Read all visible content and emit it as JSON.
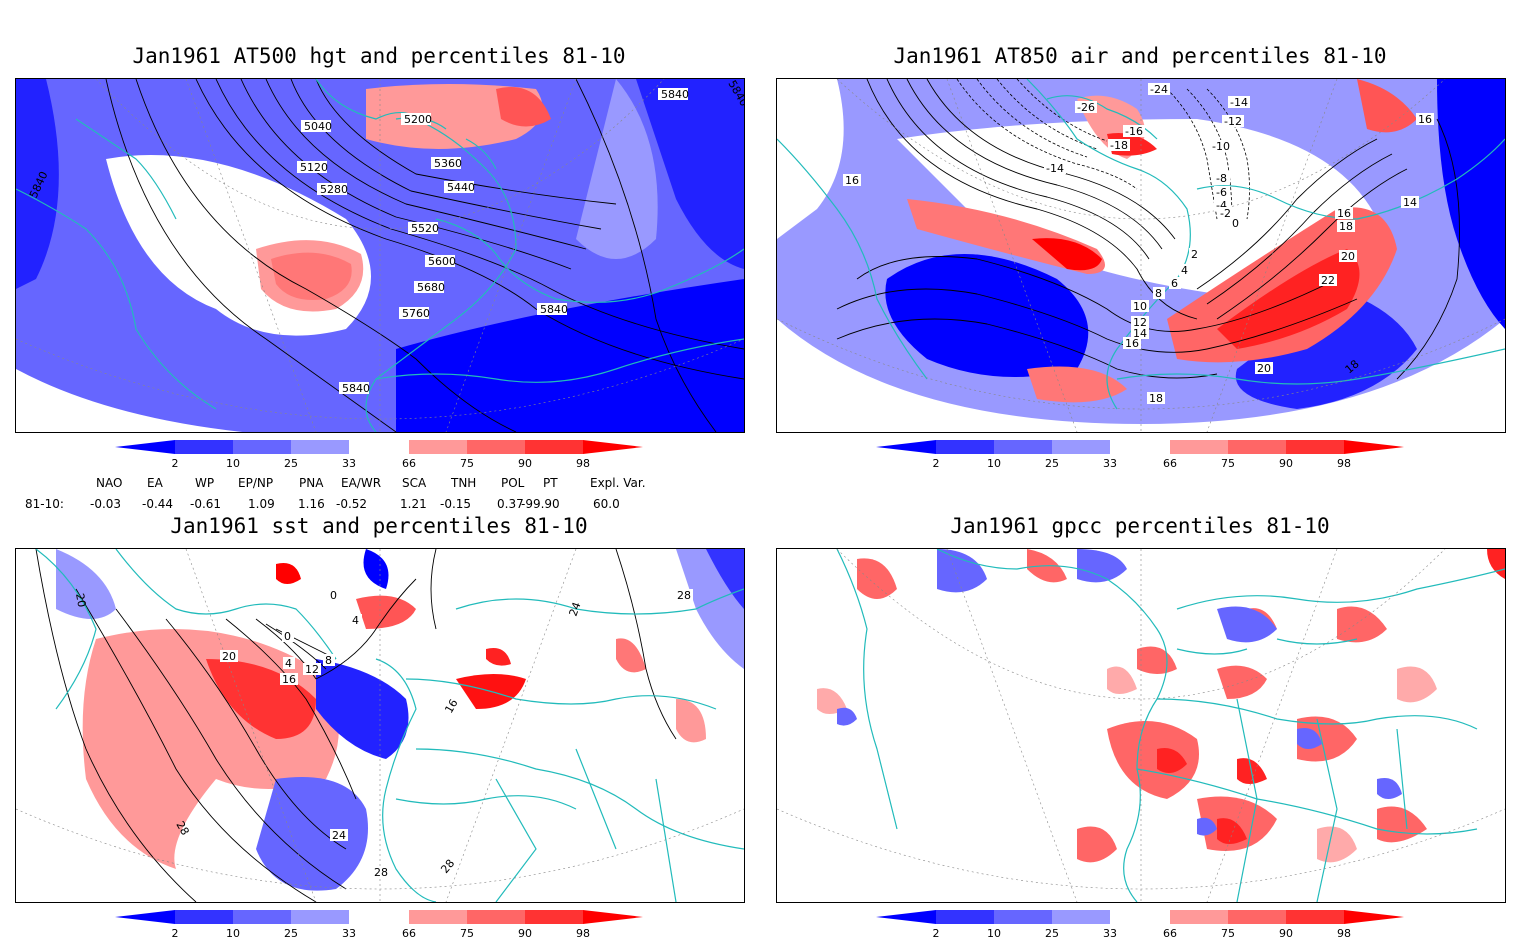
{
  "panels": [
    {
      "title": "Jan1961 AT500 hgt and percentiles 81-10",
      "contour_labels": [
        "5040",
        "5120",
        "5200",
        "5280",
        "5360",
        "5440",
        "5520",
        "5600",
        "5680",
        "5760",
        "5840",
        "5840",
        "5840",
        "5840",
        "5840"
      ]
    },
    {
      "title": "Jan1961 AT850 air and percentiles 81-10",
      "contour_labels": [
        "-26",
        "-24",
        "-18",
        "-16",
        "-14",
        "-14",
        "-12",
        "-10",
        "-8",
        "-6",
        "-4",
        "-2",
        "0",
        "2",
        "4",
        "6",
        "8",
        "10",
        "12",
        "14",
        "14",
        "16",
        "16",
        "16",
        "16",
        "18",
        "18",
        "18",
        "20",
        "20",
        "22"
      ]
    },
    {
      "title": "Jan1961 sst and percentiles 81-10",
      "contour_labels": [
        "0",
        "0",
        "4",
        "4",
        "8",
        "12",
        "16",
        "16",
        "20",
        "20",
        "24",
        "24",
        "28",
        "28",
        "28",
        "28"
      ]
    },
    {
      "title": "Jan1961 gpcc percentiles 81-10",
      "contour_labels": []
    }
  ],
  "colorbar": {
    "labels": [
      "2",
      "10",
      "25",
      "33",
      "66",
      "75",
      "90",
      "98"
    ],
    "colors": [
      "#0000ff",
      "#3333ff",
      "#6666ff",
      "#9999ff",
      "#ffffff",
      "#ff9999",
      "#ff6666",
      "#ff3333",
      "#ff0000"
    ]
  },
  "indices": {
    "row_label": "81-10:",
    "headers": [
      "NAO",
      "EA",
      "WP",
      "EP/NP",
      "PNA",
      "EA/WR",
      "SCA",
      "TNH",
      "POL",
      "PT",
      "Expl. Var."
    ],
    "values": [
      "-0.03",
      "-0.44",
      "-0.61",
      "1.09",
      "1.16",
      "-0.52",
      "1.21",
      "-0.15",
      "0.37",
      "-99.90",
      "60.0"
    ]
  },
  "colors": {
    "coast": "#22bbbb",
    "contour": "#000000",
    "grid": "#888888"
  }
}
